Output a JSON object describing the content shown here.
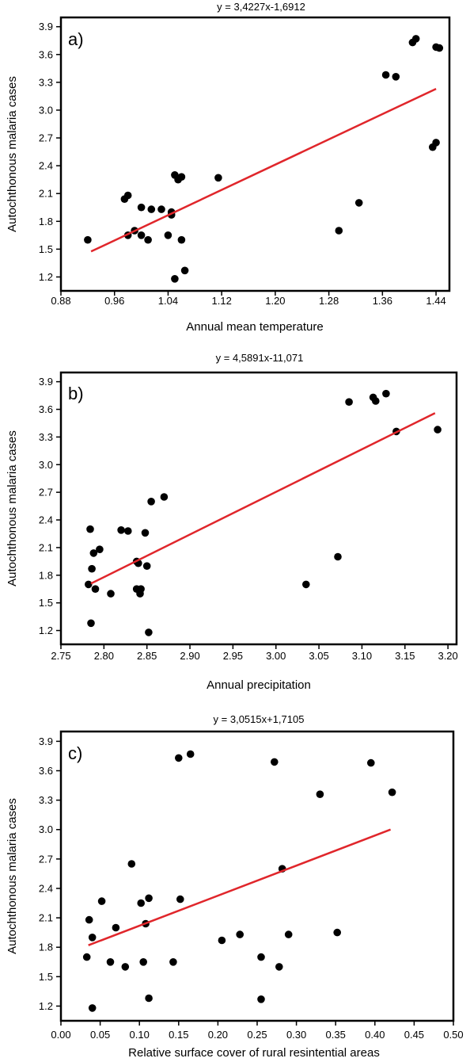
{
  "colors": {
    "regression_line": "#e0262b",
    "points": "#000000",
    "frame": "#000000"
  },
  "chart_data": [
    {
      "type": "scatter",
      "panel_label": "a)",
      "equation": "y = 3,4227x-1,6912",
      "xlabel": "Annual mean temperature",
      "ylabel": "Autochthonous malaria cases",
      "xlim": [
        0.88,
        1.46
      ],
      "ylim": [
        1.05,
        4.0
      ],
      "xticks": [
        0.88,
        0.96,
        1.04,
        1.12,
        1.2,
        1.28,
        1.36,
        1.44
      ],
      "xtick_labels": [
        "0.88",
        "0.96",
        "1.04",
        "1.12",
        "1.20",
        "1.28",
        "1.36",
        "1.44"
      ],
      "yticks": [
        1.2,
        1.5,
        1.8,
        2.1,
        2.4,
        2.7,
        3.0,
        3.3,
        3.6,
        3.9
      ],
      "ytick_labels": [
        "1.2",
        "1.5",
        "1.8",
        "2.1",
        "2.4",
        "2.7",
        "3.0",
        "3.3",
        "3.6",
        "3.9"
      ],
      "grid": false,
      "regression": {
        "x": [
          0.925,
          1.44
        ],
        "y": [
          1.475,
          3.23
        ]
      },
      "points": [
        [
          0.92,
          1.6
        ],
        [
          0.98,
          1.65
        ],
        [
          0.99,
          1.7
        ],
        [
          0.975,
          2.04
        ],
        [
          0.98,
          2.08
        ],
        [
          1.0,
          1.65
        ],
        [
          1.01,
          1.6
        ],
        [
          1.0,
          1.95
        ],
        [
          1.015,
          1.93
        ],
        [
          1.03,
          1.93
        ],
        [
          1.04,
          1.65
        ],
        [
          1.045,
          1.9
        ],
        [
          1.045,
          1.87
        ],
        [
          1.05,
          2.3
        ],
        [
          1.055,
          2.25
        ],
        [
          1.06,
          2.28
        ],
        [
          1.06,
          1.6
        ],
        [
          1.065,
          1.27
        ],
        [
          1.05,
          1.18
        ],
        [
          1.115,
          2.27
        ],
        [
          1.295,
          1.7
        ],
        [
          1.325,
          2.0
        ],
        [
          1.365,
          3.38
        ],
        [
          1.38,
          3.36
        ],
        [
          1.405,
          3.73
        ],
        [
          1.41,
          3.77
        ],
        [
          1.435,
          2.6
        ],
        [
          1.44,
          2.65
        ],
        [
          1.44,
          3.68
        ],
        [
          1.445,
          3.67
        ]
      ]
    },
    {
      "type": "scatter",
      "panel_label": "b)",
      "equation": "y = 4,5891x-11,071",
      "xlabel": "Annual precipitation",
      "ylabel": "Autochthonous malaria cases",
      "xlim": [
        2.75,
        3.21
      ],
      "ylim": [
        1.05,
        4.0
      ],
      "xticks": [
        2.75,
        2.8,
        2.85,
        2.9,
        2.95,
        3.0,
        3.05,
        3.1,
        3.15,
        3.2
      ],
      "xtick_labels": [
        "2.75",
        "2.80",
        "2.85",
        "2.90",
        "2.95",
        "3.00",
        "3.05",
        "3.10",
        "3.15",
        "3.20"
      ],
      "yticks": [
        1.2,
        1.5,
        1.8,
        2.1,
        2.4,
        2.7,
        3.0,
        3.3,
        3.6,
        3.9
      ],
      "ytick_labels": [
        "1.2",
        "1.5",
        "1.8",
        "2.1",
        "2.4",
        "2.7",
        "3.0",
        "3.3",
        "3.6",
        "3.9"
      ],
      "grid": false,
      "regression": {
        "x": [
          2.785,
          3.185
        ],
        "y": [
          1.71,
          3.56
        ]
      },
      "points": [
        [
          2.782,
          1.7
        ],
        [
          2.784,
          2.3
        ],
        [
          2.786,
          1.87
        ],
        [
          2.788,
          2.04
        ],
        [
          2.79,
          1.65
        ],
        [
          2.795,
          2.08
        ],
        [
          2.785,
          1.28
        ],
        [
          2.808,
          1.6
        ],
        [
          2.82,
          2.29
        ],
        [
          2.828,
          2.28
        ],
        [
          2.838,
          1.95
        ],
        [
          2.84,
          1.93
        ],
        [
          2.838,
          1.65
        ],
        [
          2.842,
          1.6
        ],
        [
          2.843,
          1.65
        ],
        [
          2.848,
          2.26
        ],
        [
          2.85,
          1.9
        ],
        [
          2.852,
          1.18
        ],
        [
          2.855,
          2.6
        ],
        [
          2.87,
          2.65
        ],
        [
          3.035,
          1.7
        ],
        [
          3.072,
          2.0
        ],
        [
          3.085,
          3.68
        ],
        [
          3.113,
          3.73
        ],
        [
          3.116,
          3.69
        ],
        [
          3.128,
          3.77
        ],
        [
          3.14,
          3.36
        ],
        [
          3.188,
          3.38
        ]
      ]
    },
    {
      "type": "scatter",
      "panel_label": "c)",
      "equation": "y = 3,0515x+1,7105",
      "xlabel": "Relative surface cover of rural resintential areas",
      "ylabel": "Autochthonous malaria cases",
      "xlim": [
        0.0,
        0.5
      ],
      "ylim": [
        1.05,
        4.0
      ],
      "xticks": [
        0.0,
        0.05,
        0.1,
        0.15,
        0.2,
        0.25,
        0.3,
        0.35,
        0.4,
        0.45,
        0.5
      ],
      "xtick_labels": [
        "0.00",
        "0.05",
        "0.10",
        "0.15",
        "0.20",
        "0.25",
        "0.30",
        "0.35",
        "0.40",
        "0.45",
        "0.50"
      ],
      "yticks": [
        1.2,
        1.5,
        1.8,
        2.1,
        2.4,
        2.7,
        3.0,
        3.3,
        3.6,
        3.9
      ],
      "ytick_labels": [
        "1.2",
        "1.5",
        "1.8",
        "2.1",
        "2.4",
        "2.7",
        "3.0",
        "3.3",
        "3.6",
        "3.9"
      ],
      "grid": false,
      "regression": {
        "x": [
          0.035,
          0.42
        ],
        "y": [
          1.82,
          3.0
        ]
      },
      "points": [
        [
          0.033,
          1.7
        ],
        [
          0.036,
          2.08
        ],
        [
          0.04,
          1.9
        ],
        [
          0.04,
          1.18
        ],
        [
          0.052,
          2.27
        ],
        [
          0.063,
          1.65
        ],
        [
          0.07,
          2.0
        ],
        [
          0.082,
          1.6
        ],
        [
          0.09,
          2.65
        ],
        [
          0.102,
          2.25
        ],
        [
          0.105,
          1.65
        ],
        [
          0.108,
          2.04
        ],
        [
          0.112,
          2.3
        ],
        [
          0.112,
          1.28
        ],
        [
          0.143,
          1.65
        ],
        [
          0.15,
          3.73
        ],
        [
          0.152,
          2.29
        ],
        [
          0.165,
          3.77
        ],
        [
          0.205,
          1.87
        ],
        [
          0.228,
          1.93
        ],
        [
          0.255,
          1.7
        ],
        [
          0.255,
          1.27
        ],
        [
          0.272,
          3.69
        ],
        [
          0.278,
          1.6
        ],
        [
          0.282,
          2.6
        ],
        [
          0.29,
          1.93
        ],
        [
          0.33,
          3.36
        ],
        [
          0.352,
          1.95
        ],
        [
          0.395,
          3.68
        ],
        [
          0.422,
          3.38
        ]
      ]
    }
  ]
}
